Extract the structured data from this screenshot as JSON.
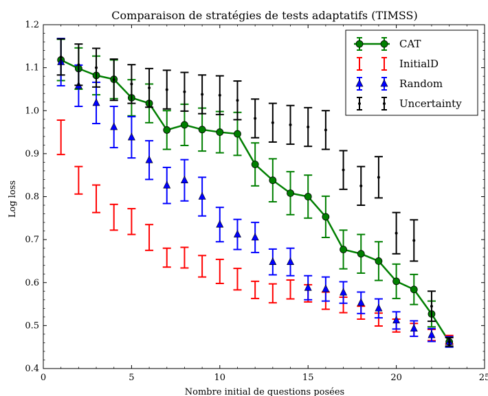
{
  "chart_data": {
    "type": "line",
    "title": "Comparaison de stratégies de tests adaptatifs (TIMSS)",
    "xlabel": "Nombre initial de questions posées",
    "ylabel": "Log loss",
    "xlim": [
      0,
      25
    ],
    "ylim": [
      0.4,
      1.2
    ],
    "xticks": [
      0,
      5,
      10,
      15,
      20,
      25
    ],
    "yticks": [
      0.4,
      0.5,
      0.6,
      0.7,
      0.8,
      0.9,
      1.0,
      1.1,
      1.2
    ],
    "xtick_labels": [
      "0",
      "5",
      "10",
      "15",
      "20",
      "25"
    ],
    "ytick_labels": [
      "0.4",
      "0.5",
      "0.6",
      "0.7",
      "0.8",
      "0.9",
      "1.0",
      "1.1",
      "1.2"
    ],
    "grid": false,
    "legend_position": "top-right",
    "x": [
      1,
      2,
      3,
      4,
      5,
      6,
      7,
      8,
      9,
      10,
      11,
      12,
      13,
      14,
      15,
      16,
      17,
      18,
      19,
      20,
      21,
      22,
      23
    ],
    "series": [
      {
        "name": "CAT",
        "color": "#007f00",
        "marker": "circle",
        "line": true,
        "values": [
          1.118,
          1.098,
          1.082,
          1.073,
          1.03,
          1.017,
          0.955,
          0.967,
          0.956,
          0.95,
          0.946,
          0.875,
          0.838,
          0.808,
          0.8,
          0.753,
          0.677,
          0.667,
          0.65,
          0.603,
          0.584,
          0.527,
          0.462
        ],
        "err": [
          0.048,
          0.048,
          0.045,
          0.045,
          0.042,
          0.045,
          0.045,
          0.048,
          0.05,
          0.048,
          0.05,
          0.05,
          0.05,
          0.05,
          0.05,
          0.048,
          0.045,
          0.045,
          0.045,
          0.04,
          0.035,
          0.03,
          0.012
        ]
      },
      {
        "name": "InitialD",
        "color": "#ff0000",
        "marker": "none",
        "line": false,
        "values": [
          0.938,
          0.838,
          0.795,
          0.752,
          0.742,
          0.705,
          0.658,
          0.658,
          0.638,
          0.626,
          0.608,
          0.583,
          0.575,
          0.584,
          0.575,
          0.558,
          0.548,
          0.53,
          0.514,
          0.5,
          0.49,
          0.478,
          0.467
        ],
        "err": [
          0.04,
          0.032,
          0.032,
          0.03,
          0.03,
          0.03,
          0.022,
          0.024,
          0.025,
          0.028,
          0.025,
          0.02,
          0.022,
          0.022,
          0.02,
          0.02,
          0.018,
          0.015,
          0.015,
          0.015,
          0.015,
          0.013,
          0.01
        ]
      },
      {
        "name": "Random",
        "color": "#0000ff",
        "marker": "triangle",
        "line": false,
        "values": [
          1.113,
          1.058,
          1.018,
          0.962,
          0.938,
          0.885,
          0.826,
          0.838,
          0.8,
          0.735,
          0.712,
          0.705,
          0.648,
          0.648,
          0.588,
          0.585,
          0.577,
          0.553,
          0.54,
          0.512,
          0.493,
          0.478,
          0.462
        ],
        "err": [
          0.055,
          0.048,
          0.048,
          0.048,
          0.048,
          0.045,
          0.042,
          0.048,
          0.045,
          0.04,
          0.035,
          0.035,
          0.03,
          0.032,
          0.028,
          0.028,
          0.025,
          0.025,
          0.022,
          0.02,
          0.018,
          0.015,
          0.012
        ]
      },
      {
        "name": "Uncertainty",
        "color": "#000000",
        "marker": "dot",
        "line": false,
        "values": [
          1.125,
          1.107,
          1.1,
          1.072,
          1.062,
          1.053,
          1.049,
          1.044,
          1.038,
          1.036,
          1.024,
          0.982,
          0.972,
          0.967,
          0.962,
          0.955,
          0.862,
          0.825,
          0.845,
          0.715,
          0.698,
          0.545,
          0.462
        ],
        "err": [
          0.042,
          0.048,
          0.045,
          0.048,
          0.045,
          0.045,
          0.045,
          0.045,
          0.045,
          0.045,
          0.045,
          0.045,
          0.045,
          0.045,
          0.045,
          0.045,
          0.045,
          0.045,
          0.048,
          0.048,
          0.048,
          0.035,
          0.01
        ]
      }
    ]
  }
}
